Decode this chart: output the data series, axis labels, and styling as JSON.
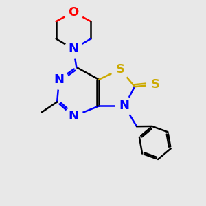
{
  "bg_color": "#e8e8e8",
  "atom_colors": {
    "N": "#0000FF",
    "O": "#FF0000",
    "S": "#CCAA00",
    "C": "#000000"
  },
  "bond_lw": 1.8,
  "font_size": 13,
  "figsize": [
    3.0,
    3.0
  ],
  "dpi": 100,
  "xlim": [
    0,
    10
  ],
  "ylim": [
    0,
    10
  ]
}
